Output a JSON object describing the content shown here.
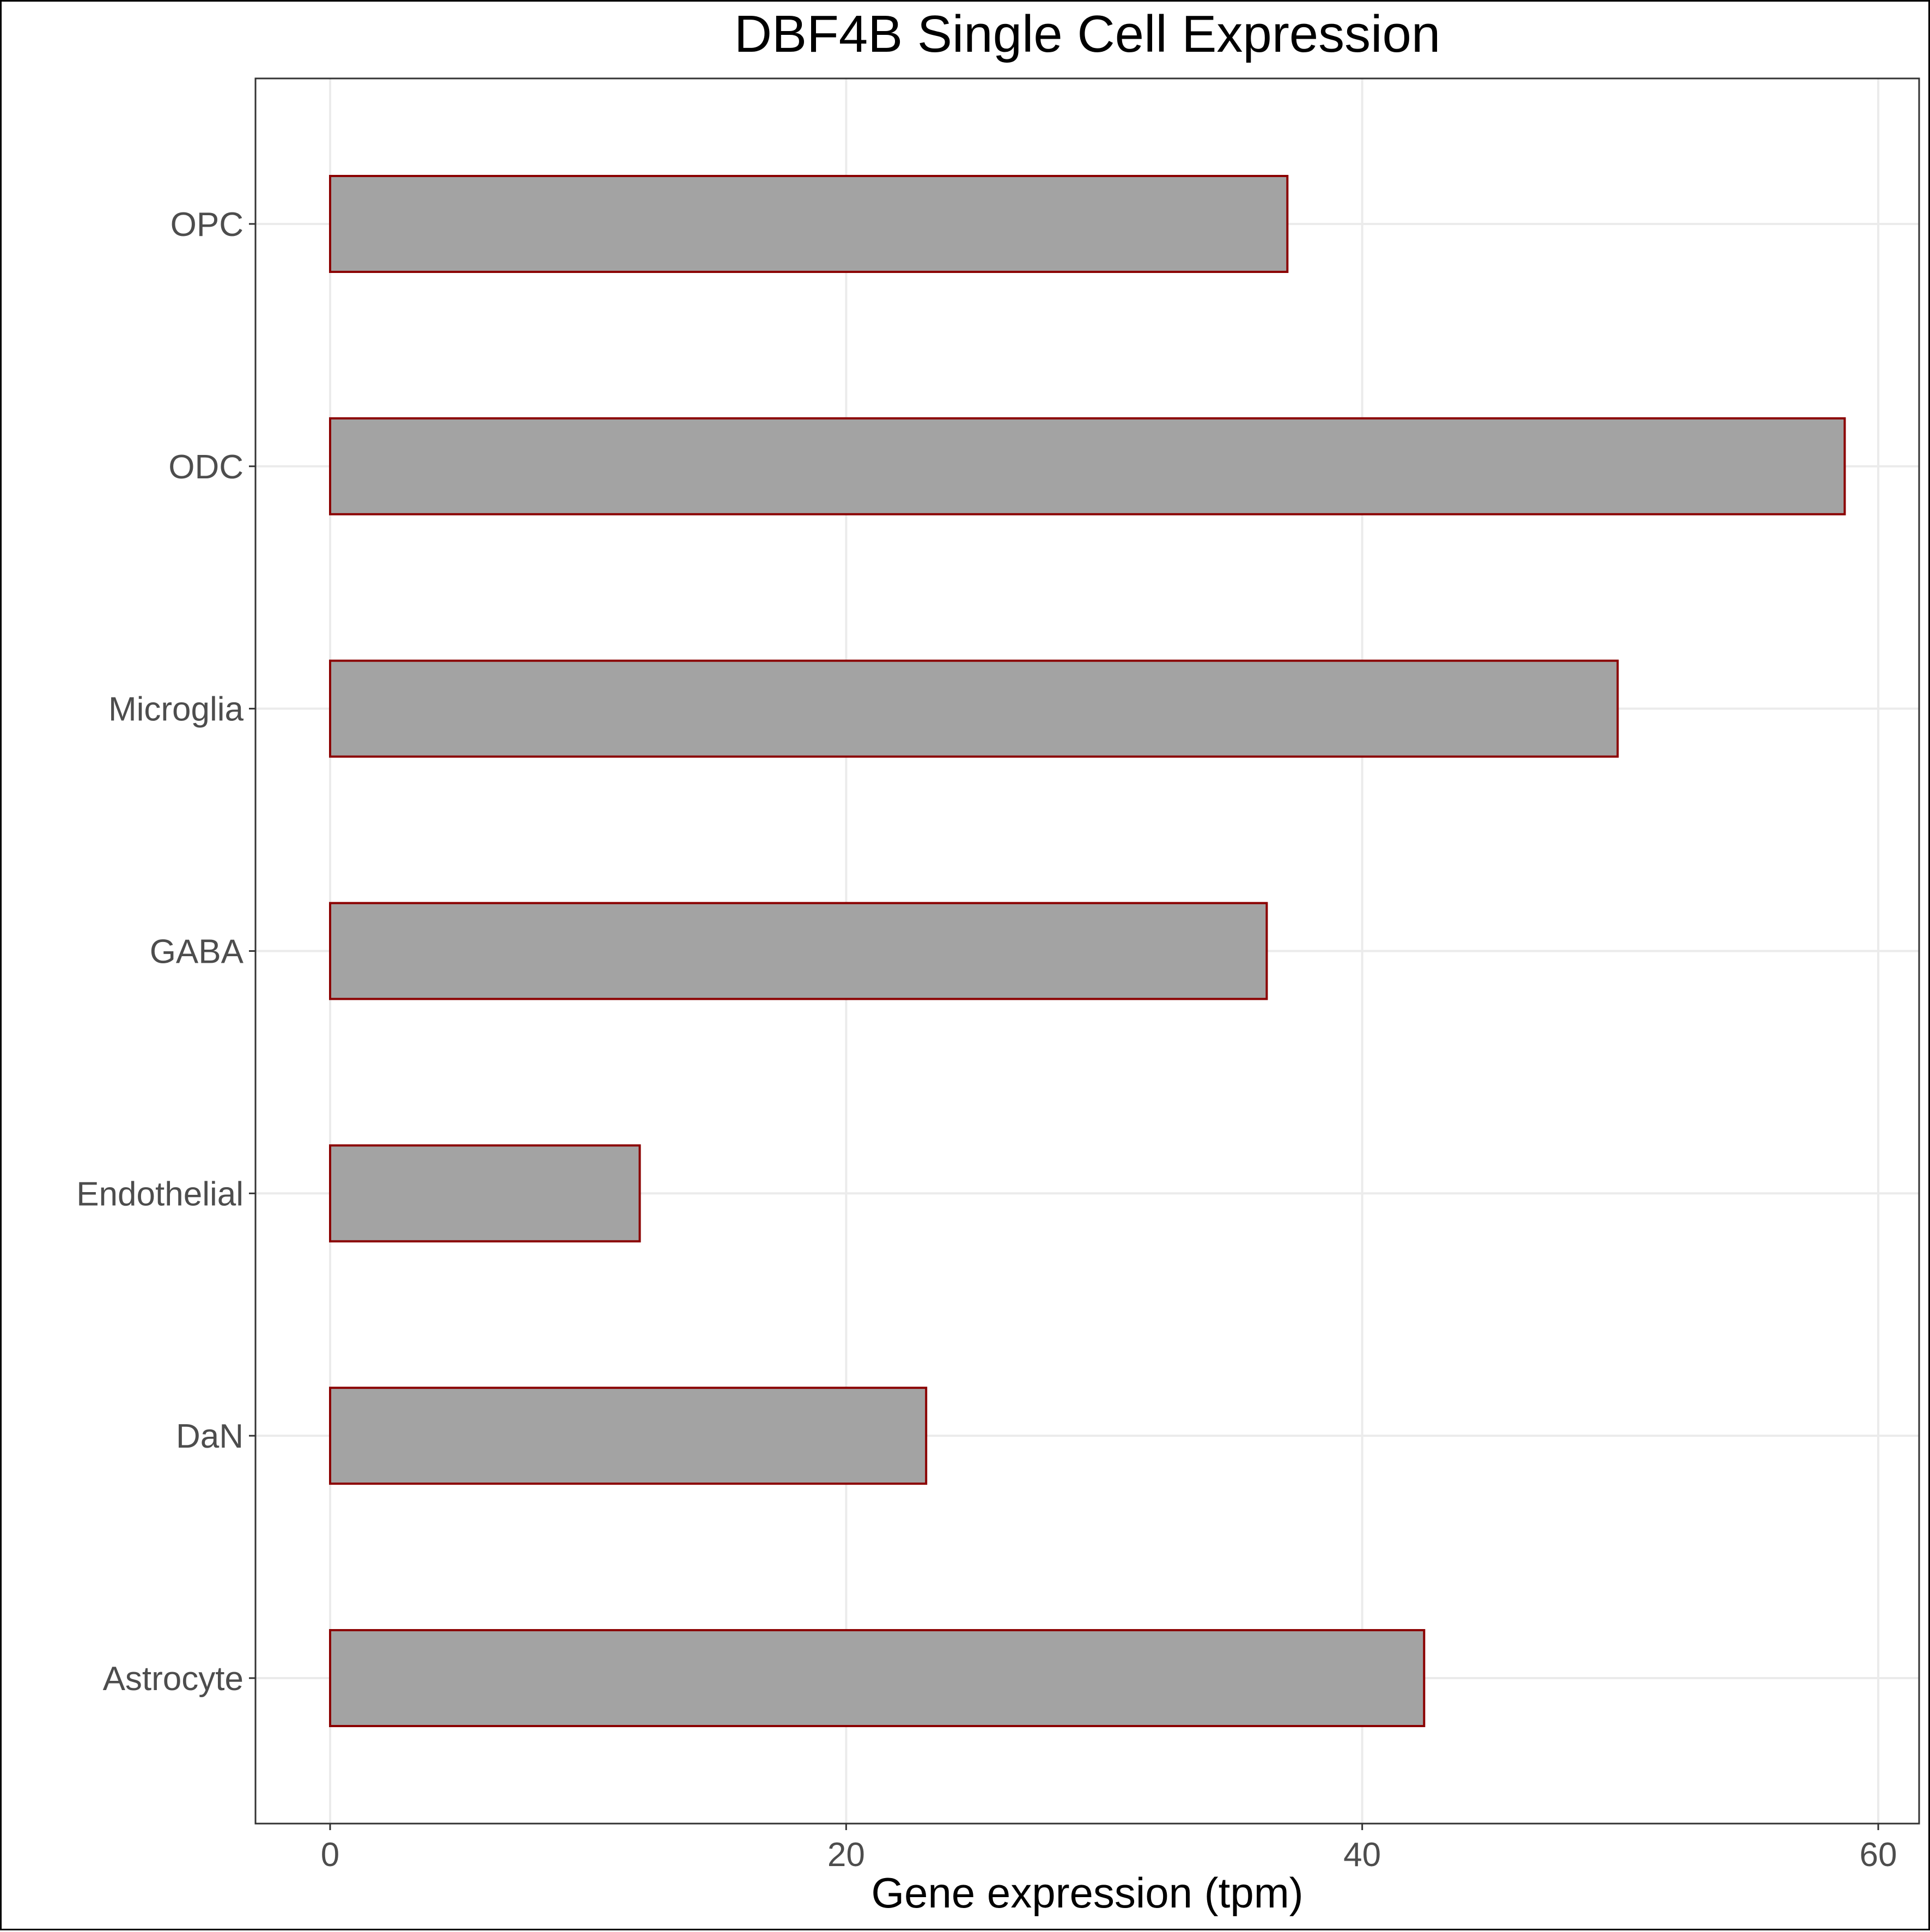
{
  "chart_data": {
    "type": "bar",
    "orientation": "horizontal",
    "title": "DBF4B Single Cell Expression",
    "xlabel": "Gene expression (tpm)",
    "ylabel": "",
    "categories": [
      "Astrocyte",
      "DaN",
      "Endothelial",
      "GABA",
      "Microglia",
      "ODC",
      "OPC"
    ],
    "values": [
      42.4,
      23.1,
      12.0,
      36.3,
      49.9,
      58.7,
      37.1
    ],
    "xlim": [
      0,
      60
    ],
    "xticks": [
      0,
      20,
      40,
      60
    ],
    "grid": true,
    "legend": "none",
    "colors": {
      "bar_fill": "#a3a3a3",
      "bar_stroke": "#8b0000",
      "grid": "#ebebeb",
      "panel_border": "#333333",
      "tick_text": "#4d4d4d"
    }
  }
}
